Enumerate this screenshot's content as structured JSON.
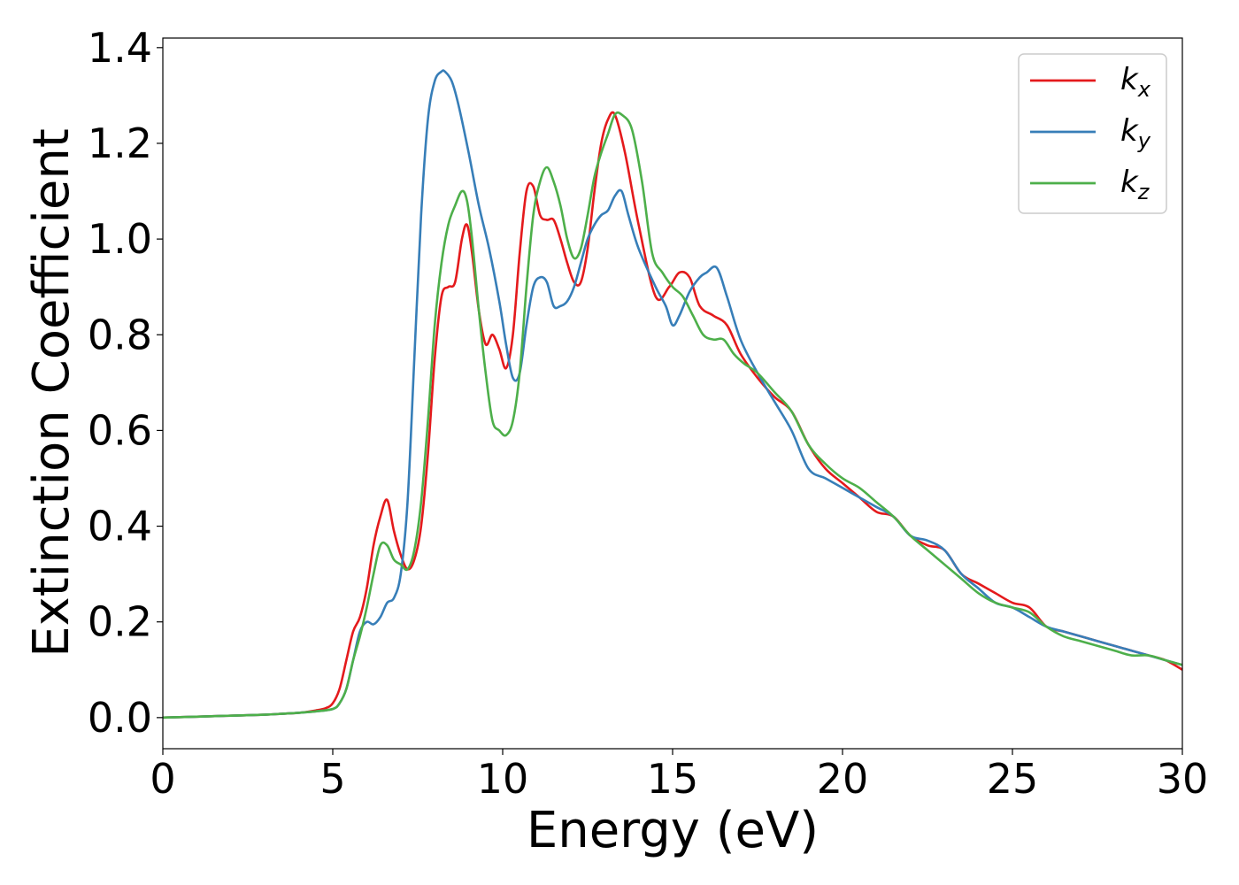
{
  "chart_data": {
    "type": "line",
    "title": "",
    "xlabel": "Energy (eV)",
    "ylabel": "Extinction Coefficient",
    "xlim": [
      0,
      30
    ],
    "ylim": [
      -0.065,
      1.42
    ],
    "xticks": [
      "0",
      "5",
      "10",
      "15",
      "20",
      "25",
      "30"
    ],
    "yticks": [
      "0.0",
      "0.2",
      "0.4",
      "0.6",
      "0.8",
      "1.0",
      "1.2",
      "1.4"
    ],
    "grid": false,
    "legend_position": "top-right",
    "series": [
      {
        "name": "k_x",
        "legend_base": "k",
        "legend_sub": "x",
        "color": "#e41a1c",
        "x": [
          0,
          1,
          2,
          3,
          3.5,
          4,
          4.5,
          4.8,
          5.0,
          5.2,
          5.4,
          5.6,
          5.8,
          6.0,
          6.2,
          6.4,
          6.6,
          6.8,
          7.0,
          7.2,
          7.4,
          7.6,
          7.8,
          8.0,
          8.2,
          8.4,
          8.6,
          8.8,
          8.95,
          9.1,
          9.3,
          9.5,
          9.7,
          9.9,
          10.1,
          10.3,
          10.5,
          10.7,
          10.9,
          11.1,
          11.3,
          11.5,
          11.7,
          11.9,
          12.1,
          12.3,
          12.5,
          12.7,
          12.9,
          13.1,
          13.3,
          13.6,
          14.0,
          14.5,
          14.9,
          15.2,
          15.5,
          15.8,
          16.2,
          16.6,
          17.0,
          17.5,
          18.0,
          18.5,
          19.0,
          19.5,
          20.0,
          20.5,
          21.0,
          21.5,
          22.0,
          22.5,
          23.0,
          23.5,
          24.0,
          24.5,
          25.0,
          25.5,
          26.0,
          26.5,
          27.0,
          27.5,
          28.0,
          28.5,
          29.0,
          29.5,
          30.0
        ],
        "values": [
          0,
          0.002,
          0.004,
          0.006,
          0.008,
          0.01,
          0.015,
          0.02,
          0.03,
          0.06,
          0.12,
          0.18,
          0.21,
          0.27,
          0.36,
          0.42,
          0.455,
          0.39,
          0.34,
          0.31,
          0.33,
          0.4,
          0.55,
          0.75,
          0.88,
          0.9,
          0.91,
          1.0,
          1.03,
          0.97,
          0.85,
          0.78,
          0.8,
          0.77,
          0.73,
          0.8,
          0.97,
          1.1,
          1.11,
          1.05,
          1.04,
          1.04,
          1.0,
          0.95,
          0.91,
          0.91,
          0.98,
          1.1,
          1.2,
          1.25,
          1.26,
          1.18,
          1.03,
          0.88,
          0.9,
          0.93,
          0.92,
          0.86,
          0.84,
          0.82,
          0.76,
          0.71,
          0.67,
          0.64,
          0.57,
          0.52,
          0.49,
          0.46,
          0.43,
          0.42,
          0.38,
          0.36,
          0.35,
          0.3,
          0.28,
          0.26,
          0.24,
          0.23,
          0.19,
          0.18,
          0.17,
          0.16,
          0.15,
          0.14,
          0.13,
          0.12,
          0.1
        ]
      },
      {
        "name": "k_y",
        "legend_base": "k",
        "legend_sub": "y",
        "color": "#377eb8",
        "x": [
          0,
          1,
          2,
          3,
          3.5,
          4,
          4.5,
          5.0,
          5.2,
          5.4,
          5.6,
          5.8,
          6.0,
          6.2,
          6.4,
          6.6,
          6.8,
          7.0,
          7.2,
          7.4,
          7.6,
          7.8,
          8.0,
          8.2,
          8.3,
          8.5,
          8.7,
          9.0,
          9.3,
          9.6,
          9.9,
          10.1,
          10.3,
          10.5,
          10.7,
          10.9,
          11.1,
          11.3,
          11.5,
          11.7,
          11.9,
          12.1,
          12.3,
          12.5,
          12.7,
          12.9,
          13.1,
          13.3,
          13.5,
          13.7,
          14.0,
          14.5,
          14.8,
          15.0,
          15.2,
          15.5,
          15.8,
          16.0,
          16.3,
          16.6,
          17.0,
          17.5,
          18.0,
          18.5,
          19.0,
          19.5,
          20.0,
          20.5,
          21.0,
          21.5,
          22.0,
          22.5,
          23.0,
          23.5,
          24.0,
          24.5,
          25.0,
          25.5,
          26.0,
          26.5,
          27.0,
          27.5,
          28.0,
          28.5,
          29.0,
          29.5,
          30.0
        ],
        "values": [
          0,
          0.002,
          0.004,
          0.006,
          0.008,
          0.01,
          0.013,
          0.018,
          0.03,
          0.06,
          0.12,
          0.18,
          0.2,
          0.195,
          0.21,
          0.24,
          0.25,
          0.3,
          0.45,
          0.75,
          1.05,
          1.25,
          1.33,
          1.35,
          1.35,
          1.33,
          1.28,
          1.18,
          1.07,
          0.98,
          0.87,
          0.78,
          0.71,
          0.72,
          0.82,
          0.9,
          0.92,
          0.91,
          0.86,
          0.86,
          0.87,
          0.9,
          0.95,
          1.0,
          1.03,
          1.05,
          1.06,
          1.09,
          1.1,
          1.05,
          0.98,
          0.9,
          0.86,
          0.82,
          0.84,
          0.89,
          0.92,
          0.93,
          0.94,
          0.88,
          0.79,
          0.72,
          0.66,
          0.6,
          0.52,
          0.5,
          0.48,
          0.46,
          0.44,
          0.42,
          0.38,
          0.37,
          0.35,
          0.3,
          0.27,
          0.24,
          0.23,
          0.21,
          0.19,
          0.18,
          0.17,
          0.16,
          0.15,
          0.14,
          0.13,
          0.12,
          0.11
        ]
      },
      {
        "name": "k_z",
        "legend_base": "k",
        "legend_sub": "z",
        "color": "#4daf4a",
        "x": [
          0,
          1,
          2,
          3,
          3.5,
          4,
          4.5,
          5.0,
          5.2,
          5.4,
          5.6,
          5.8,
          6.0,
          6.2,
          6.4,
          6.6,
          6.8,
          7.0,
          7.2,
          7.4,
          7.6,
          7.8,
          8.0,
          8.2,
          8.4,
          8.6,
          8.8,
          8.95,
          9.1,
          9.3,
          9.5,
          9.7,
          9.9,
          10.1,
          10.3,
          10.5,
          10.7,
          10.9,
          11.1,
          11.3,
          11.5,
          11.7,
          11.9,
          12.1,
          12.3,
          12.5,
          12.7,
          12.9,
          13.1,
          13.3,
          13.5,
          13.8,
          14.1,
          14.4,
          14.7,
          15.0,
          15.3,
          15.6,
          15.9,
          16.2,
          16.5,
          16.8,
          17.1,
          17.5,
          18.0,
          18.5,
          19.0,
          19.5,
          20.0,
          20.5,
          21.0,
          21.5,
          22.0,
          22.5,
          23.0,
          23.5,
          24.0,
          24.5,
          25.0,
          25.5,
          26.0,
          26.5,
          27.0,
          27.5,
          28.0,
          28.5,
          29.0,
          29.5,
          30.0
        ],
        "values": [
          0,
          0.002,
          0.004,
          0.006,
          0.008,
          0.01,
          0.013,
          0.018,
          0.03,
          0.06,
          0.12,
          0.17,
          0.23,
          0.3,
          0.36,
          0.36,
          0.33,
          0.32,
          0.31,
          0.35,
          0.45,
          0.62,
          0.82,
          0.95,
          1.03,
          1.07,
          1.1,
          1.08,
          1.0,
          0.85,
          0.72,
          0.62,
          0.6,
          0.59,
          0.62,
          0.72,
          0.9,
          1.05,
          1.12,
          1.15,
          1.12,
          1.07,
          1.0,
          0.96,
          0.98,
          1.05,
          1.13,
          1.18,
          1.22,
          1.26,
          1.26,
          1.23,
          1.12,
          0.97,
          0.93,
          0.9,
          0.88,
          0.84,
          0.8,
          0.79,
          0.79,
          0.76,
          0.74,
          0.72,
          0.68,
          0.64,
          0.57,
          0.53,
          0.5,
          0.48,
          0.45,
          0.42,
          0.38,
          0.35,
          0.32,
          0.29,
          0.26,
          0.24,
          0.23,
          0.22,
          0.19,
          0.17,
          0.16,
          0.15,
          0.14,
          0.13,
          0.13,
          0.12,
          0.11
        ]
      }
    ]
  }
}
